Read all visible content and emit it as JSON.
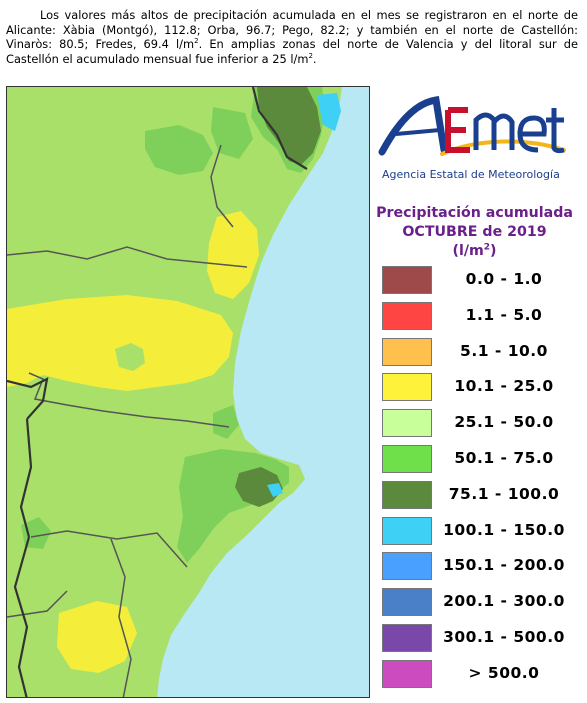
{
  "intro": {
    "line1": "Los valores más altos de precipitación acumulada en el mes se registraron en el norte de Alicante: Xàbia (Montgó), 112.8; Orba, 96.7; Pego, 82.2; y también en el norte de Castellón: Vinaròs: 80.5; Fredes, 69.4 l/m",
    "exp1": "2",
    "line2": ". En amplias zonas del norte de Valencia y del litoral sur de Castellón el acumulado mensual fue inferior a 25 l/m",
    "exp2": "2",
    "line3": "."
  },
  "logo": {
    "mark": "AEmet",
    "subtitle": "Agencia Estatal de Meteorología",
    "colors": {
      "a": "#1a3f8f",
      "e": "#c8102e",
      "met": "#1a3f8f",
      "swoosh": "#f2b51c"
    }
  },
  "legend": {
    "title_line1": "Precipitación acumulada",
    "title_line2": "OCTUBRE de 2019",
    "units_prefix": "(l/m",
    "units_exp": "2",
    "units_suffix": ")",
    "items": [
      {
        "label": "0.0 - 1.0",
        "color": "#9e4a4a"
      },
      {
        "label": "1.1 - 5.0",
        "color": "#ff4444"
      },
      {
        "label": "5.1 - 10.0",
        "color": "#ffc04d"
      },
      {
        "label": "10.1 - 25.0",
        "color": "#fff23a"
      },
      {
        "label": "25.1 - 50.0",
        "color": "#c8ff9a"
      },
      {
        "label": "50.1 - 75.0",
        "color": "#6fe04a"
      },
      {
        "label": "75.1 - 100.0",
        "color": "#5c8a3c"
      },
      {
        "label": "100.1 - 150.0",
        "color": "#3fd0f5"
      },
      {
        "label": "150.1 - 200.0",
        "color": "#4aa0ff"
      },
      {
        "label": "200.1 - 300.0",
        "color": "#4a80c8"
      },
      {
        "label": "300.1 - 500.0",
        "color": "#7a48a8"
      },
      {
        "label": "> 500.0",
        "color": "#cc4cc0"
      }
    ]
  },
  "map": {
    "colors": {
      "sea": "#b8e8f4",
      "range_25_50": "#a8e06a",
      "range_50_75": "#7fd05a",
      "range_10_25": "#f4ee3a",
      "range_75_100": "#5c8a3c",
      "range_100_150": "#3fd0f5",
      "borders": "#555555"
    }
  }
}
